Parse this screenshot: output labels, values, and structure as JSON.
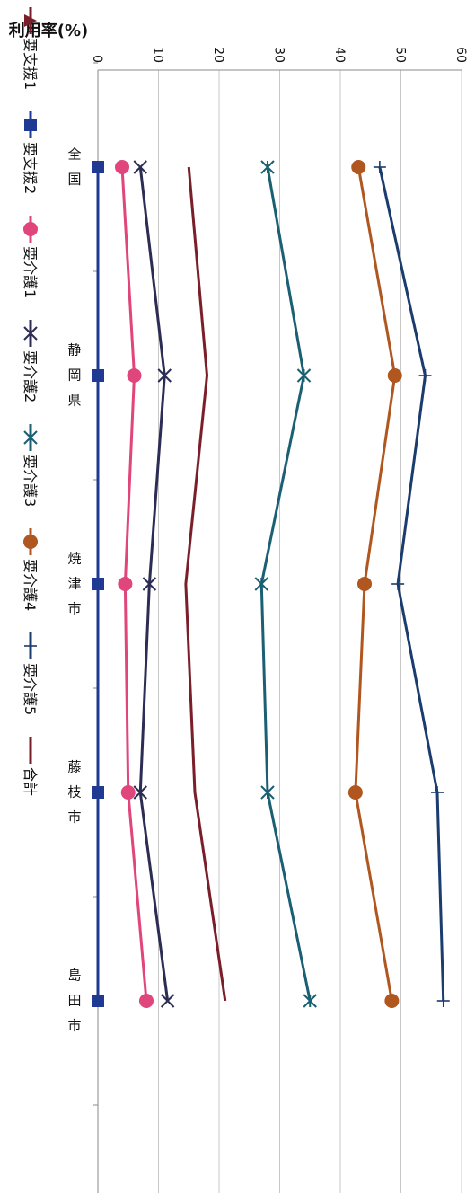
{
  "chart_data": {
    "type": "line",
    "ylabel": "利用率(%)",
    "xlabel": "",
    "ylim": [
      0,
      60
    ],
    "yticks": [
      0,
      10,
      20,
      30,
      40,
      50,
      60
    ],
    "grid": true,
    "legend_position": "top",
    "orientation": "rotated-90-clockwise",
    "categories": [
      "全国",
      "静岡県",
      "焼津市",
      "藤枝市",
      "島田市"
    ],
    "series": [
      {
        "name": "要支援1",
        "color": "#7a1e2a",
        "marker": "triangle",
        "values": [
          null,
          null,
          null,
          null,
          null
        ]
      },
      {
        "name": "要支援2",
        "color": "#1f3a93",
        "marker": "square",
        "values": [
          0,
          0,
          0,
          0,
          0
        ]
      },
      {
        "name": "要介護1",
        "color": "#e0457b",
        "marker": "circle",
        "values": [
          4,
          6,
          4.5,
          5,
          8
        ]
      },
      {
        "name": "要介護2",
        "color": "#2c2c54",
        "marker": "x",
        "values": [
          7,
          11,
          8.5,
          7,
          11.5
        ]
      },
      {
        "name": "要介護3",
        "color": "#1b5f73",
        "marker": "star",
        "values": [
          28,
          34,
          27,
          28,
          35
        ]
      },
      {
        "name": "要介護4",
        "color": "#b0561f",
        "marker": "circle",
        "values": [
          43,
          49,
          44,
          42.5,
          48.5
        ]
      },
      {
        "name": "要介護5",
        "color": "#1a3c6e",
        "marker": "plus",
        "values": [
          46.5,
          54,
          49.5,
          56,
          57
        ]
      },
      {
        "name": "合計",
        "color": "#7a1e2a",
        "marker": "none",
        "values": [
          15,
          18,
          14.5,
          16,
          21
        ]
      }
    ]
  }
}
